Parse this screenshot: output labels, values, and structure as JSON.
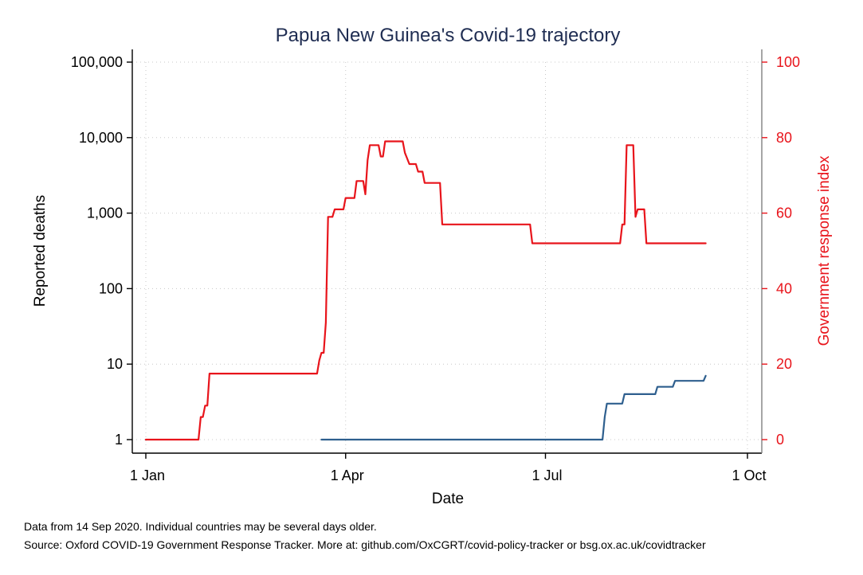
{
  "chart_data": {
    "type": "line",
    "title": "Papua New Guinea's Covid-19 trajectory",
    "xlabel": "Date",
    "ylabel": "Reported deaths",
    "ylabel_right": "Government response index",
    "xlim": [
      "2020-01-01",
      "2020-10-01"
    ],
    "x_ticks": [
      {
        "date": "2020-01-01",
        "label": "1 Jan"
      },
      {
        "date": "2020-04-01",
        "label": "1 Apr"
      },
      {
        "date": "2020-07-01",
        "label": "1 Jul"
      },
      {
        "date": "2020-10-01",
        "label": "1 Oct"
      }
    ],
    "y_left": {
      "scale": "log",
      "ylim": [
        1,
        100000
      ],
      "ticks": [
        {
          "value": 1,
          "label": "1"
        },
        {
          "value": 10,
          "label": "10"
        },
        {
          "value": 100,
          "label": "100"
        },
        {
          "value": 1000,
          "label": "1,000"
        },
        {
          "value": 10000,
          "label": "10,000"
        },
        {
          "value": 100000,
          "label": "100,000"
        }
      ]
    },
    "y_right": {
      "scale": "linear",
      "ylim": [
        0,
        100
      ],
      "ticks": [
        {
          "value": 0,
          "label": "0"
        },
        {
          "value": 20,
          "label": "20"
        },
        {
          "value": 40,
          "label": "40"
        },
        {
          "value": 60,
          "label": "60"
        },
        {
          "value": 80,
          "label": "80"
        },
        {
          "value": 100,
          "label": "100"
        }
      ]
    },
    "grid": true,
    "series": [
      {
        "axis": "right",
        "color": "#e8141b",
        "points": [
          [
            "2020-01-01",
            0
          ],
          [
            "2020-01-25",
            0
          ],
          [
            "2020-01-26",
            6
          ],
          [
            "2020-01-27",
            6
          ],
          [
            "2020-01-28",
            9
          ],
          [
            "2020-01-29",
            9
          ],
          [
            "2020-01-30",
            17.5
          ],
          [
            "2020-03-19",
            17.5
          ],
          [
            "2020-03-20",
            21
          ],
          [
            "2020-03-21",
            23
          ],
          [
            "2020-03-22",
            23
          ],
          [
            "2020-03-23",
            31
          ],
          [
            "2020-03-24",
            59
          ],
          [
            "2020-03-25",
            59
          ],
          [
            "2020-03-26",
            59
          ],
          [
            "2020-03-27",
            61
          ],
          [
            "2020-03-30",
            61
          ],
          [
            "2020-03-31",
            61
          ],
          [
            "2020-04-01",
            64
          ],
          [
            "2020-04-04",
            64
          ],
          [
            "2020-04-05",
            64
          ],
          [
            "2020-04-06",
            68.5
          ],
          [
            "2020-04-09",
            68.5
          ],
          [
            "2020-04-10",
            65
          ],
          [
            "2020-04-11",
            74
          ],
          [
            "2020-04-12",
            78
          ],
          [
            "2020-04-16",
            78
          ],
          [
            "2020-04-17",
            75
          ],
          [
            "2020-04-18",
            75
          ],
          [
            "2020-04-19",
            79
          ],
          [
            "2020-04-27",
            79
          ],
          [
            "2020-04-28",
            76
          ],
          [
            "2020-04-30",
            73
          ],
          [
            "2020-05-03",
            73
          ],
          [
            "2020-05-04",
            71
          ],
          [
            "2020-05-06",
            71
          ],
          [
            "2020-05-07",
            68
          ],
          [
            "2020-05-14",
            68
          ],
          [
            "2020-05-15",
            57
          ],
          [
            "2020-06-24",
            57
          ],
          [
            "2020-06-25",
            52
          ],
          [
            "2020-08-04",
            52
          ],
          [
            "2020-08-05",
            57
          ],
          [
            "2020-08-06",
            57
          ],
          [
            "2020-08-07",
            78
          ],
          [
            "2020-08-10",
            78
          ],
          [
            "2020-08-11",
            59
          ],
          [
            "2020-08-12",
            61
          ],
          [
            "2020-08-15",
            61
          ],
          [
            "2020-08-16",
            52
          ],
          [
            "2020-09-12",
            52
          ]
        ]
      },
      {
        "axis": "left",
        "color": "#2e5f8e",
        "points": [
          [
            "2020-03-21",
            1
          ],
          [
            "2020-07-27",
            1
          ],
          [
            "2020-07-28",
            2
          ],
          [
            "2020-07-29",
            3
          ],
          [
            "2020-08-05",
            3
          ],
          [
            "2020-08-06",
            4
          ],
          [
            "2020-08-20",
            4
          ],
          [
            "2020-08-21",
            5
          ],
          [
            "2020-08-28",
            5
          ],
          [
            "2020-08-29",
            6
          ],
          [
            "2020-09-11",
            6
          ],
          [
            "2020-09-12",
            7
          ]
        ]
      }
    ]
  },
  "notes": {
    "line1": "Data from 14 Sep 2020. Individual countries may be several days older.",
    "line2": "Source: Oxford COVID-19 Government Response Tracker. More at: github.com/OxCGRT/covid-policy-tracker or bsg.ox.ac.uk/covidtracker"
  }
}
